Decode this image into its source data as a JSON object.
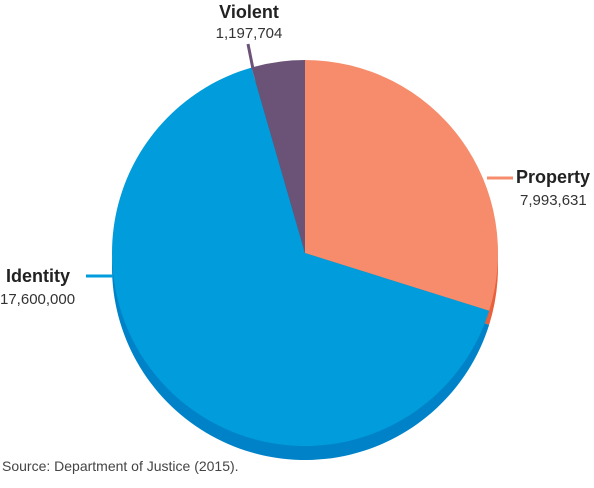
{
  "chart_data": {
    "type": "pie",
    "labels": [
      "Property",
      "Identity",
      "Violent"
    ],
    "values": [
      7993631,
      17600000,
      1197704
    ],
    "value_labels": [
      "7,993,631",
      "17,600,000",
      "1,197,704"
    ],
    "colors": [
      "#F68C6B",
      "#009CDB",
      "#6B5378"
    ],
    "shadow_colors": [
      "#E8603C",
      "#0082C8",
      "#4F3C5C"
    ],
    "start_angle_degrees": 0,
    "direction": "clockwise",
    "title": ""
  },
  "footer": {
    "source": "Source: Department of Justice (2015)."
  }
}
